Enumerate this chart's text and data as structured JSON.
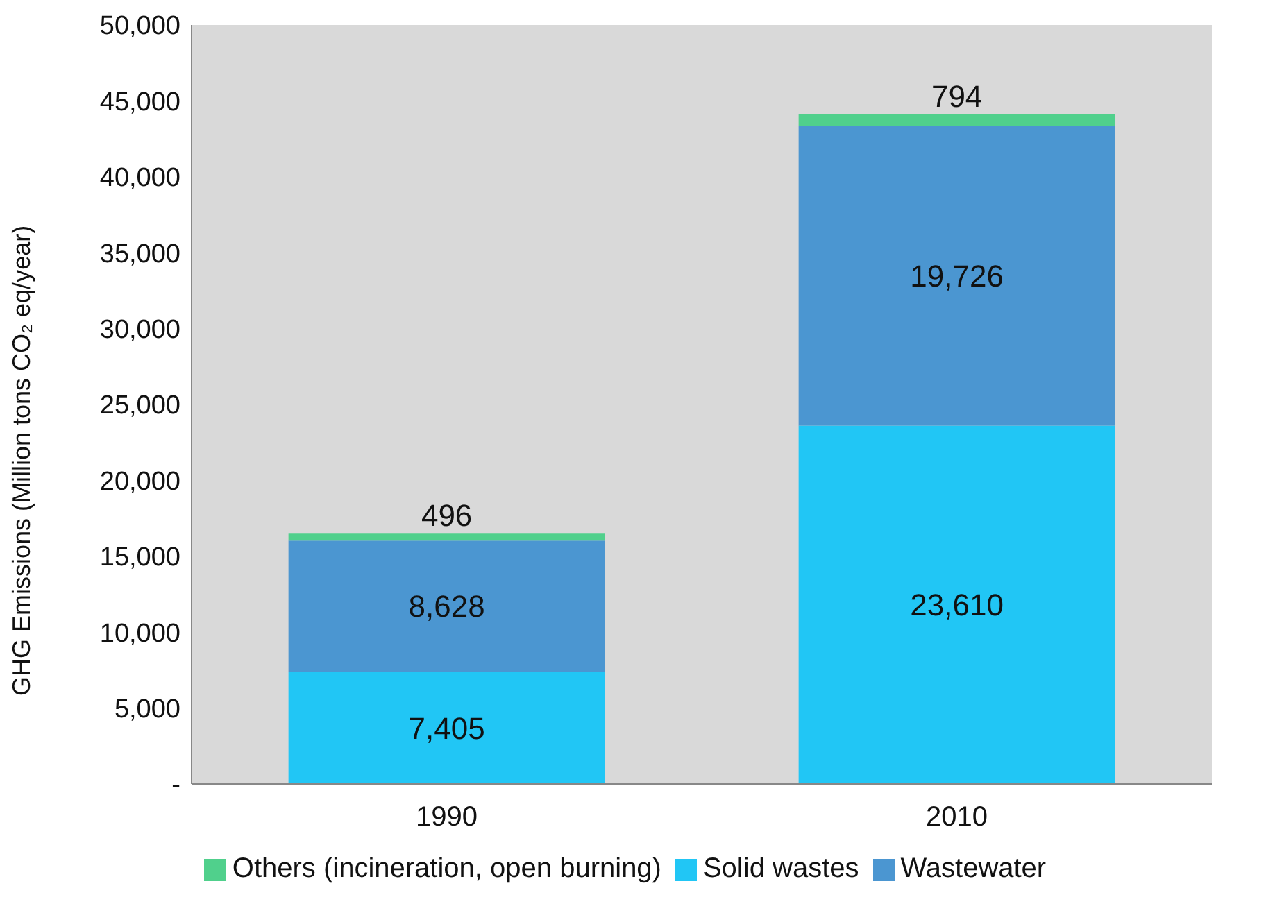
{
  "chart_data": {
    "type": "bar",
    "stacked": true,
    "ylabel": "GHG Emissions (Million tons CO₂ eq/year)",
    "categories": [
      "1990",
      "2010"
    ],
    "series": [
      {
        "name": "Solid wastes",
        "color": "#21c6f5",
        "values": [
          7405,
          23610
        ],
        "value_labels": [
          "7,405",
          "23,610"
        ]
      },
      {
        "name": "Wastewater",
        "color": "#4b96d1",
        "values": [
          8628,
          19726
        ],
        "value_labels": [
          "8,628",
          "19,726"
        ]
      },
      {
        "name": "Others (incineration, open burning)",
        "color": "#50d08c",
        "values": [
          496,
          794
        ],
        "value_labels": [
          "496",
          "794"
        ]
      }
    ],
    "ylim": [
      0,
      50000
    ],
    "yticks": [
      {
        "value": 0,
        "label": "-"
      },
      {
        "value": 5000,
        "label": "5,000"
      },
      {
        "value": 10000,
        "label": "10,000"
      },
      {
        "value": 15000,
        "label": "15,000"
      },
      {
        "value": 20000,
        "label": "20,000"
      },
      {
        "value": 25000,
        "label": "25,000"
      },
      {
        "value": 30000,
        "label": "30,000"
      },
      {
        "value": 35000,
        "label": "35,000"
      },
      {
        "value": 40000,
        "label": "40,000"
      },
      {
        "value": 45000,
        "label": "45,000"
      },
      {
        "value": 50000,
        "label": "50,000"
      }
    ],
    "legend": "bottom"
  }
}
